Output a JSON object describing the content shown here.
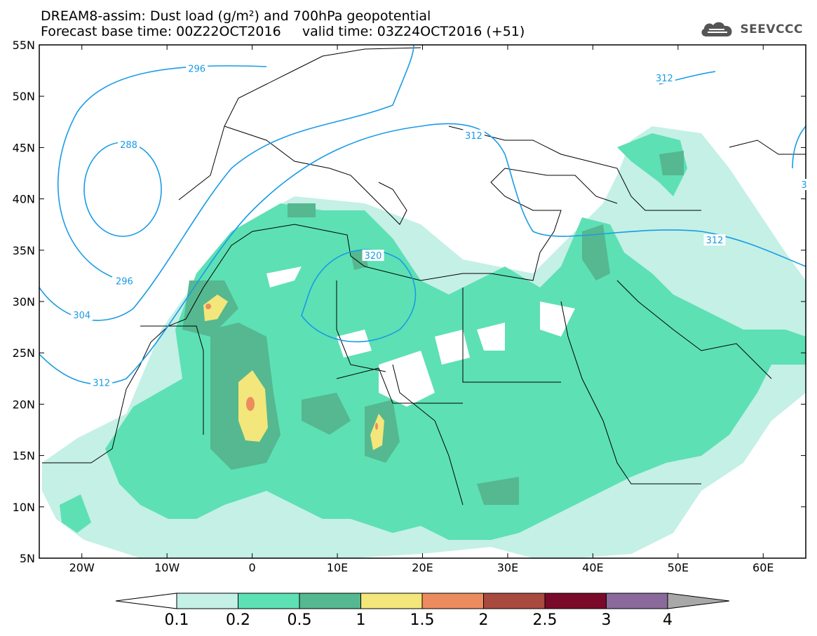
{
  "header": {
    "line1": "DREAM8-assim: Dust load (g/m²) and 700hPa geopotential",
    "line2": "Forecast base time: 00Z22OCT2016     valid time: 03Z24OCT2016 (+51)"
  },
  "logo": {
    "text": "SEEVCCC",
    "icon": "cloud-logo-icon"
  },
  "axes": {
    "lat_ticks": [
      "55N",
      "50N",
      "45N",
      "40N",
      "35N",
      "30N",
      "25N",
      "20N",
      "15N",
      "10N",
      "5N"
    ],
    "lat_values": [
      55,
      50,
      45,
      40,
      35,
      30,
      25,
      20,
      15,
      10,
      5
    ],
    "lon_ticks": [
      "20W",
      "10W",
      "0",
      "10E",
      "20E",
      "30E",
      "40E",
      "50E",
      "60E"
    ],
    "lon_values": [
      -20,
      -10,
      0,
      10,
      20,
      30,
      40,
      50,
      60
    ],
    "lon_range": [
      -25,
      65
    ],
    "lat_range": [
      5,
      55
    ]
  },
  "contour_labels": [
    {
      "text": "296",
      "lon": -6.5,
      "lat": 52.7
    },
    {
      "text": "288",
      "lon": -14.5,
      "lat": 45.3
    },
    {
      "text": "296",
      "lon": -15,
      "lat": 32.0
    },
    {
      "text": "304",
      "lon": -20,
      "lat": 28.7
    },
    {
      "text": "312",
      "lon": -17.7,
      "lat": 22.1
    },
    {
      "text": "312",
      "lon": 26,
      "lat": 46.2
    },
    {
      "text": "312",
      "lon": 48.4,
      "lat": 51.8
    },
    {
      "text": "312",
      "lon": 54.3,
      "lat": 36.0
    },
    {
      "text": "320",
      "lon": 14.2,
      "lat": 34.5
    },
    {
      "text": "3",
      "lon": 64.8,
      "lat": 41.4
    }
  ],
  "colorbar": {
    "labels": [
      "0.1",
      "0.2",
      "0.5",
      "1",
      "1.5",
      "2",
      "2.5",
      "3",
      "4"
    ],
    "colors": [
      "#c4f0e6",
      "#5de0b4",
      "#55b890",
      "#f3e67a",
      "#ec8c5e",
      "#a84a3e",
      "#7a0a2a",
      "#8a6a9a"
    ],
    "under_color": "#ffffff",
    "over_color": "#a8a8a8"
  },
  "field_colors": {
    "level1": "#c4f0e6",
    "level2": "#5de0b4",
    "level3": "#55b890",
    "level4": "#f3e67a",
    "level5": "#ec8c5e",
    "contour": "#1a9be6"
  }
}
